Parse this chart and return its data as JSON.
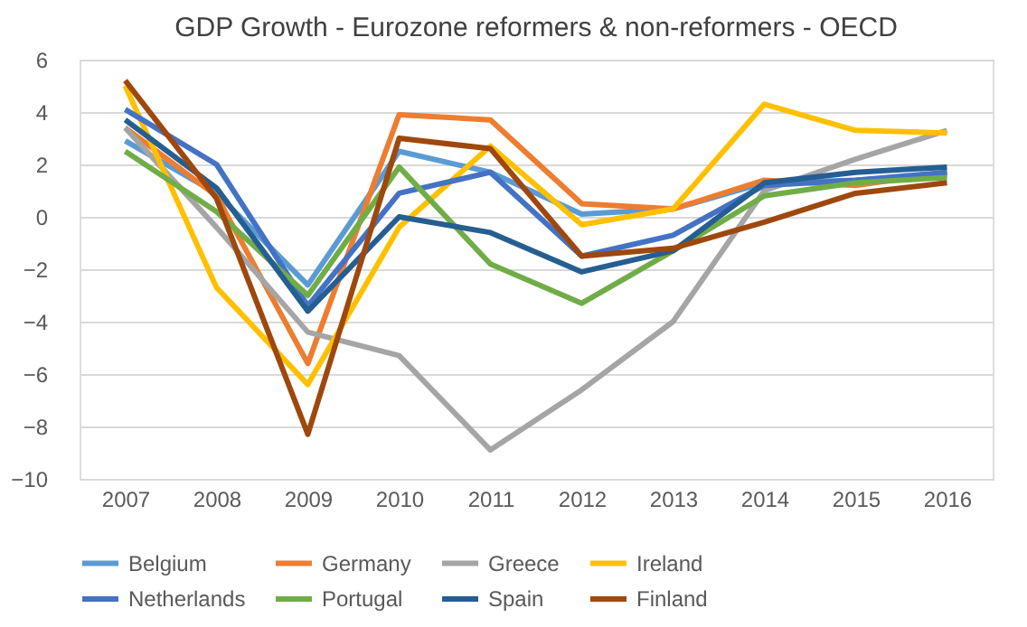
{
  "chart_data": {
    "type": "line",
    "title": "GDP Growth - Eurozone reformers & non-reformers - OECD",
    "categories": [
      "2007",
      "2008",
      "2009",
      "2010",
      "2011",
      "2012",
      "2013",
      "2014",
      "2015",
      "2016"
    ],
    "series": [
      {
        "name": "Belgium",
        "color": "#5b9bd5",
        "values": [
          2.9,
          0.9,
          -2.6,
          2.5,
          1.7,
          0.1,
          0.3,
          1.3,
          1.4,
          1.6
        ]
      },
      {
        "name": "Germany",
        "color": "#ed7d31",
        "values": [
          3.4,
          0.8,
          -5.6,
          3.9,
          3.7,
          0.5,
          0.3,
          1.4,
          1.2,
          1.7
        ]
      },
      {
        "name": "Greece",
        "color": "#a5a5a5",
        "values": [
          3.4,
          -0.4,
          -4.4,
          -5.3,
          -8.9,
          -6.6,
          -4.0,
          1.0,
          2.2,
          3.3
        ]
      },
      {
        "name": "Ireland",
        "color": "#ffc000",
        "values": [
          5.0,
          -2.7,
          -6.4,
          -0.4,
          2.7,
          -0.3,
          0.3,
          4.3,
          3.3,
          3.2
        ]
      },
      {
        "name": "Netherlands",
        "color": "#4472c4",
        "values": [
          4.1,
          2.0,
          -3.4,
          0.9,
          1.7,
          -1.5,
          -0.7,
          1.2,
          1.4,
          1.7
        ]
      },
      {
        "name": "Portugal",
        "color": "#70ad47",
        "values": [
          2.5,
          0.2,
          -3.0,
          1.9,
          -1.8,
          -3.3,
          -1.3,
          0.8,
          1.3,
          1.5
        ]
      },
      {
        "name": "Spain",
        "color": "#255e91",
        "values": [
          3.7,
          1.1,
          -3.6,
          0.0,
          -0.6,
          -2.1,
          -1.3,
          1.3,
          1.7,
          1.9
        ]
      },
      {
        "name": "Finland",
        "color": "#9e480e",
        "values": [
          5.2,
          0.7,
          -8.3,
          3.0,
          2.6,
          -1.5,
          -1.2,
          -0.2,
          0.9,
          1.3
        ]
      }
    ],
    "ylim": [
      -10,
      6
    ],
    "yticks": [
      -10,
      -8,
      -6,
      -4,
      -2,
      0,
      2,
      4,
      6
    ],
    "grid": "y",
    "legend": "bottom",
    "marker": "none",
    "line_style": "solid"
  }
}
